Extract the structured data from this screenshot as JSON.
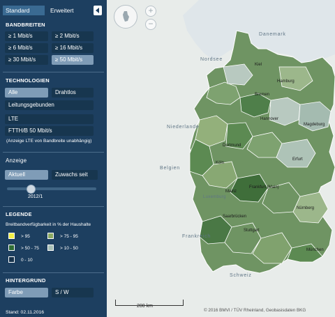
{
  "tabs": {
    "standard": "Standard",
    "erweitert": "Erweitert"
  },
  "bandbreiten": {
    "title": "BANDBREITEN",
    "options": [
      "≥ 1 Mbit/s",
      "≥ 2 Mbit/s",
      "≥ 6 Mbit/s",
      "≥ 16 Mbit/s",
      "≥ 30 Mbit/s",
      "≥ 50 Mbit/s"
    ],
    "selected": "≥ 50 Mbit/s"
  },
  "technologien": {
    "title": "TECHNOLOGIEN",
    "options": [
      "Alle",
      "Drahtlos",
      "Leitungsgebunden",
      "LTE",
      "FTTH/B 50 Mbit/s"
    ],
    "selected": "Alle",
    "note": "(Anzeige LTE von Bandbreite unabhängig)"
  },
  "anzeige": {
    "title": "Anzeige",
    "options": [
      "Aktuell",
      "Zuwachs seit"
    ],
    "selected": "Aktuell",
    "slider_value": "2012/1"
  },
  "legende": {
    "title": "LEGENDE",
    "subtitle": "Breitbandverfügbarkeit in % der Haushalte",
    "items": [
      {
        "label": "> 95",
        "color": "#f2ef45"
      },
      {
        "label": "> 75 - 95",
        "color": "#8caa63"
      },
      {
        "label": "> 50 - 75",
        "color": "#2f6d35"
      },
      {
        "label": "> 10 - 50",
        "color": "#a9c1b6"
      },
      {
        "label": "0 - 10",
        "color": "#16324b"
      }
    ]
  },
  "hintergrund": {
    "title": "HINTERGRUND",
    "options": [
      "Farbe",
      "S / W"
    ],
    "selected": "Farbe"
  },
  "stand": "Stand: 02.11.2016",
  "map": {
    "zoom_in": "+",
    "zoom_out": "−",
    "labels": [
      "Danemark",
      "Nordsee",
      "Niederlande",
      "Belgien",
      "Luxemburg",
      "Frankreich",
      "Schweiz"
    ],
    "cities": [
      "Kiel",
      "Hamburg",
      "Bremen",
      "Hannover",
      "Magdeburg",
      "Dortmund",
      "Köln",
      "Erfurt",
      "Mainz",
      "Frankfurt (Main)",
      "Saarbrücken",
      "Nürnberg",
      "Stuttgart",
      "München"
    ],
    "scale": "200 km",
    "attribution": "© 2016 BMVI / TÜV Rheinland, Geobasisdaten BKG"
  }
}
